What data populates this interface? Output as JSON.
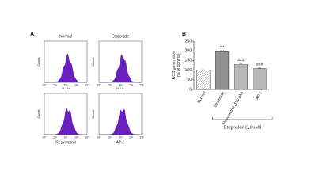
{
  "panel_a": {
    "label": "A",
    "x_label": "FL1-H",
    "y_label": "Counts",
    "x_ticks": [
      "10⁰",
      "10¹",
      "10²",
      "10³",
      "10⁴"
    ],
    "plots": [
      {
        "title": "Normal"
      },
      {
        "title": "Etoposide"
      },
      {
        "title": "Resveratrol"
      },
      {
        "title": "AP-1"
      }
    ]
  },
  "chart_data": {
    "type": "bar",
    "panel_label": "B",
    "y_label": "ROS generation\n(% of control)",
    "categories": [
      "Normal",
      "Etoposide",
      "Resveratrol (100 µM)",
      "AP-1"
    ],
    "values": [
      100,
      195,
      130,
      108
    ],
    "errors": [
      2,
      6,
      5,
      3
    ],
    "annotations": [
      null,
      "***",
      "###",
      "###"
    ],
    "color": "#333333",
    "ylim": [
      0,
      250
    ],
    "yticks": [
      0,
      50,
      100,
      150,
      200,
      250
    ],
    "group_label": "Etoposide (20μM)"
  }
}
